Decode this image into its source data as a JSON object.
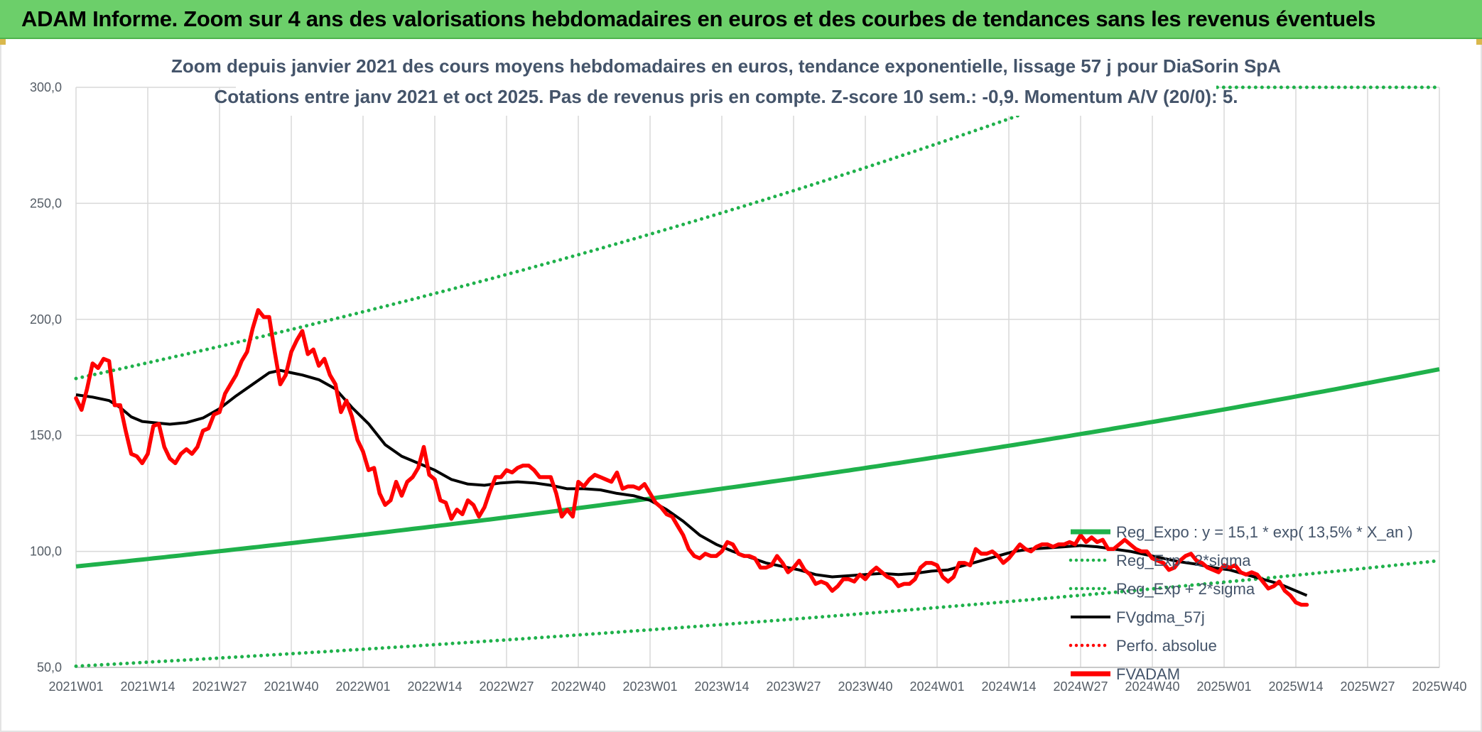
{
  "banner": {
    "title": "ADAM Informe. Zoom sur 4 ans des valorisations hebdomadaires en euros et des courbes de tendances sans les revenus éventuels"
  },
  "colors": {
    "green": "#1fb14b",
    "red": "#ff0000",
    "black": "#000000",
    "banner": "#6ccf6a",
    "grid": "#d9d9d9"
  },
  "chart_data": {
    "type": "line",
    "title": "Zoom depuis janvier 2021 des cours moyens hebdomadaires en euros, tendance exponentielle, lissage 57 j pour DiaSorin SpA",
    "subtitle": "Cotations entre janv 2021 et oct 2025. Pas de revenus pris en compte. Z-score 10 sem.: -0,9. Momentum A/V (20/0): 5.",
    "xlabel": "",
    "ylabel": "",
    "ylim": [
      50,
      300
    ],
    "xlim": [
      0,
      247
    ],
    "y_ticks": [
      50,
      100,
      150,
      200,
      250,
      300
    ],
    "y_tick_labels": [
      "50,0",
      "100,0",
      "150,0",
      "200,0",
      "250,0",
      "300,0"
    ],
    "x_ticks": [
      0,
      13,
      26,
      39,
      52,
      65,
      78,
      91,
      104,
      117,
      130,
      143,
      156,
      169,
      182,
      195,
      208,
      221,
      234,
      247
    ],
    "x_tick_labels": [
      "2021W01",
      "2021W14",
      "2021W27",
      "2021W40",
      "2022W01",
      "2022W14",
      "2022W27",
      "2022W40",
      "2023W01",
      "2023W14",
      "2023W27",
      "2023W40",
      "2024W01",
      "2024W14",
      "2024W27",
      "2024W40",
      "2025W01",
      "2025W14",
      "2025W27",
      "2025W40"
    ],
    "grid": true,
    "legend_position": "right",
    "legend": [
      {
        "name": "Reg_Expo : y = 15,1 * exp( 13,5% *  X_an )",
        "color": "#1fb14b",
        "style": "solid-thick"
      },
      {
        "name": "Reg_Exp - 2*sigma",
        "color": "#1fb14b",
        "style": "dotted"
      },
      {
        "name": "Reg_Exp + 2*sigma",
        "color": "#1fb14b",
        "style": "dotted"
      },
      {
        "name": "FVgdma_57j",
        "color": "#000000",
        "style": "solid"
      },
      {
        "name": "Perfo. absolue",
        "color": "#ff0000",
        "style": "dotted"
      },
      {
        "name": "FVADAM",
        "color": "#ff0000",
        "style": "solid-thick"
      }
    ],
    "trend": {
      "start": 93.5,
      "end": 178.5,
      "cap": 300
    },
    "trend_upper": {
      "start": 174.5,
      "end": 360,
      "cap": 300
    },
    "trend_lower": {
      "start": 50.5,
      "end": 96,
      "cap": 300
    },
    "series": [
      {
        "name": "FVADAM",
        "points": [
          [
            0,
            166
          ],
          [
            1,
            161
          ],
          [
            2,
            170
          ],
          [
            3,
            181
          ],
          [
            4,
            179
          ],
          [
            5,
            183
          ],
          [
            6,
            182
          ],
          [
            7,
            163
          ],
          [
            8,
            163
          ],
          [
            9,
            152
          ],
          [
            10,
            142
          ],
          [
            11,
            141
          ],
          [
            12,
            138
          ],
          [
            13,
            142
          ],
          [
            14,
            154
          ],
          [
            15,
            155
          ],
          [
            16,
            145
          ],
          [
            17,
            140
          ],
          [
            18,
            138
          ],
          [
            19,
            142
          ],
          [
            20,
            144
          ],
          [
            21,
            142
          ],
          [
            22,
            145
          ],
          [
            23,
            152
          ],
          [
            24,
            153
          ],
          [
            25,
            159
          ],
          [
            26,
            160
          ],
          [
            27,
            168
          ],
          [
            28,
            172
          ],
          [
            29,
            176
          ],
          [
            30,
            182
          ],
          [
            31,
            186
          ],
          [
            32,
            196
          ],
          [
            33,
            204
          ],
          [
            34,
            201
          ],
          [
            35,
            201
          ],
          [
            36,
            186
          ],
          [
            37,
            172
          ],
          [
            38,
            176
          ],
          [
            39,
            186
          ],
          [
            40,
            191
          ],
          [
            41,
            195
          ],
          [
            42,
            185
          ],
          [
            43,
            187
          ],
          [
            44,
            180
          ],
          [
            45,
            183
          ],
          [
            46,
            176
          ],
          [
            47,
            172
          ],
          [
            48,
            160
          ],
          [
            49,
            165
          ],
          [
            50,
            158
          ],
          [
            51,
            148
          ],
          [
            52,
            143
          ],
          [
            53,
            135
          ],
          [
            54,
            136
          ],
          [
            55,
            125
          ],
          [
            56,
            120
          ],
          [
            57,
            122
          ],
          [
            58,
            130
          ],
          [
            59,
            124
          ],
          [
            60,
            130
          ],
          [
            61,
            132
          ],
          [
            62,
            136
          ],
          [
            63,
            145
          ],
          [
            64,
            133
          ],
          [
            65,
            131
          ],
          [
            66,
            122
          ],
          [
            67,
            121
          ],
          [
            68,
            114
          ],
          [
            69,
            118
          ],
          [
            70,
            116
          ],
          [
            71,
            122
          ],
          [
            72,
            120
          ],
          [
            73,
            115
          ],
          [
            74,
            119
          ],
          [
            75,
            126
          ],
          [
            76,
            132
          ],
          [
            77,
            132
          ],
          [
            78,
            135
          ],
          [
            79,
            134
          ],
          [
            80,
            136
          ],
          [
            81,
            137
          ],
          [
            82,
            137
          ],
          [
            83,
            135
          ],
          [
            84,
            132
          ],
          [
            85,
            132
          ],
          [
            86,
            132
          ],
          [
            87,
            125
          ],
          [
            88,
            115
          ],
          [
            89,
            118
          ],
          [
            90,
            115
          ],
          [
            91,
            130
          ],
          [
            92,
            128
          ],
          [
            93,
            131
          ],
          [
            94,
            133
          ],
          [
            95,
            132
          ],
          [
            96,
            131
          ],
          [
            97,
            130
          ],
          [
            98,
            134
          ],
          [
            99,
            127
          ],
          [
            100,
            128
          ],
          [
            101,
            128
          ],
          [
            102,
            127
          ],
          [
            103,
            129
          ],
          [
            104,
            125
          ],
          [
            105,
            121
          ],
          [
            106,
            119
          ],
          [
            107,
            116
          ],
          [
            108,
            115
          ],
          [
            109,
            111
          ],
          [
            110,
            107
          ],
          [
            111,
            101
          ],
          [
            112,
            98
          ],
          [
            113,
            97
          ],
          [
            114,
            99
          ],
          [
            115,
            98
          ],
          [
            116,
            98
          ],
          [
            117,
            100
          ],
          [
            118,
            104
          ],
          [
            119,
            103
          ],
          [
            120,
            99
          ],
          [
            121,
            98
          ],
          [
            122,
            98
          ],
          [
            123,
            97
          ],
          [
            124,
            93
          ],
          [
            125,
            93
          ],
          [
            126,
            94
          ],
          [
            127,
            98
          ],
          [
            128,
            95
          ],
          [
            129,
            91
          ],
          [
            130,
            93
          ],
          [
            131,
            96
          ],
          [
            132,
            92
          ],
          [
            133,
            90
          ],
          [
            134,
            86
          ],
          [
            135,
            87
          ],
          [
            136,
            86
          ],
          [
            137,
            83
          ],
          [
            138,
            85
          ],
          [
            139,
            88
          ],
          [
            140,
            88
          ],
          [
            141,
            87
          ],
          [
            142,
            90
          ],
          [
            143,
            88
          ],
          [
            144,
            91
          ],
          [
            145,
            93
          ],
          [
            146,
            91
          ],
          [
            147,
            89
          ],
          [
            148,
            88
          ],
          [
            149,
            85
          ],
          [
            150,
            86
          ],
          [
            151,
            86
          ],
          [
            152,
            88
          ],
          [
            153,
            93
          ],
          [
            154,
            95
          ],
          [
            155,
            95
          ],
          [
            156,
            94
          ],
          [
            157,
            89
          ],
          [
            158,
            87
          ],
          [
            159,
            89
          ],
          [
            160,
            95
          ],
          [
            161,
            95
          ],
          [
            162,
            94
          ],
          [
            163,
            101
          ],
          [
            164,
            99
          ],
          [
            165,
            99
          ],
          [
            166,
            100
          ],
          [
            167,
            98
          ],
          [
            168,
            95
          ],
          [
            169,
            97
          ],
          [
            170,
            100
          ],
          [
            171,
            103
          ],
          [
            172,
            101
          ],
          [
            173,
            100
          ],
          [
            174,
            102
          ],
          [
            175,
            103
          ],
          [
            176,
            103
          ],
          [
            177,
            102
          ],
          [
            178,
            103
          ],
          [
            179,
            103
          ],
          [
            180,
            104
          ],
          [
            181,
            103
          ],
          [
            182,
            107
          ],
          [
            183,
            104
          ],
          [
            184,
            106
          ],
          [
            185,
            104
          ],
          [
            186,
            105
          ],
          [
            187,
            101
          ],
          [
            188,
            101
          ],
          [
            189,
            103
          ],
          [
            190,
            105
          ],
          [
            191,
            103
          ],
          [
            192,
            101
          ],
          [
            193,
            100
          ],
          [
            194,
            100
          ],
          [
            195,
            97
          ],
          [
            196,
            96
          ],
          [
            197,
            95
          ],
          [
            198,
            92
          ],
          [
            199,
            93
          ],
          [
            200,
            96
          ],
          [
            201,
            98
          ],
          [
            202,
            99
          ],
          [
            203,
            96
          ],
          [
            204,
            95
          ],
          [
            205,
            93
          ],
          [
            206,
            92
          ],
          [
            207,
            91
          ],
          [
            208,
            94
          ],
          [
            209,
            93
          ],
          [
            210,
            94
          ],
          [
            211,
            91
          ],
          [
            212,
            90
          ],
          [
            213,
            91
          ],
          [
            214,
            90
          ],
          [
            215,
            87
          ],
          [
            216,
            84
          ],
          [
            217,
            85
          ],
          [
            218,
            87
          ],
          [
            219,
            83
          ],
          [
            220,
            81
          ],
          [
            221,
            78
          ],
          [
            222,
            77
          ],
          [
            223,
            77
          ]
        ]
      },
      {
        "name": "FVgdma_57j",
        "points": [
          [
            0,
            167.5
          ],
          [
            3,
            166.5
          ],
          [
            6,
            165
          ],
          [
            8,
            162
          ],
          [
            10,
            158
          ],
          [
            12,
            156
          ],
          [
            14,
            155.5
          ],
          [
            17,
            154.8
          ],
          [
            20,
            155.5
          ],
          [
            23,
            157.5
          ],
          [
            26,
            161.5
          ],
          [
            29,
            167
          ],
          [
            32,
            172
          ],
          [
            35,
            177
          ],
          [
            37,
            178
          ],
          [
            39,
            177
          ],
          [
            41,
            176
          ],
          [
            44,
            174
          ],
          [
            47,
            170
          ],
          [
            50,
            162
          ],
          [
            53,
            155
          ],
          [
            56,
            146
          ],
          [
            59,
            141
          ],
          [
            62,
            138
          ],
          [
            65,
            135
          ],
          [
            68,
            131
          ],
          [
            71,
            129
          ],
          [
            74,
            128.5
          ],
          [
            77,
            129.5
          ],
          [
            80,
            130
          ],
          [
            83,
            129.5
          ],
          [
            86,
            128.5
          ],
          [
            89,
            127
          ],
          [
            92,
            127
          ],
          [
            95,
            126.5
          ],
          [
            98,
            125
          ],
          [
            101,
            124
          ],
          [
            104,
            122
          ],
          [
            107,
            118
          ],
          [
            110,
            113
          ],
          [
            113,
            107
          ],
          [
            116,
            103
          ],
          [
            119,
            100
          ],
          [
            122,
            97.5
          ],
          [
            125,
            95
          ],
          [
            128,
            93.5
          ],
          [
            131,
            92
          ],
          [
            134,
            90
          ],
          [
            137,
            89
          ],
          [
            140,
            89.5
          ],
          [
            143,
            90
          ],
          [
            146,
            90.5
          ],
          [
            149,
            90
          ],
          [
            152,
            90.5
          ],
          [
            155,
            91.5
          ],
          [
            158,
            92
          ],
          [
            161,
            94
          ],
          [
            164,
            96
          ],
          [
            167,
            98
          ],
          [
            170,
            100
          ],
          [
            173,
            101
          ],
          [
            176,
            101.5
          ],
          [
            179,
            102
          ],
          [
            182,
            102.5
          ],
          [
            185,
            102
          ],
          [
            188,
            101
          ],
          [
            191,
            100
          ],
          [
            194,
            98.5
          ],
          [
            197,
            97
          ],
          [
            200,
            95.5
          ],
          [
            203,
            94.5
          ],
          [
            206,
            93
          ],
          [
            209,
            92
          ],
          [
            212,
            90
          ],
          [
            215,
            88
          ],
          [
            218,
            86
          ],
          [
            221,
            83
          ],
          [
            223,
            81
          ]
        ]
      }
    ]
  }
}
